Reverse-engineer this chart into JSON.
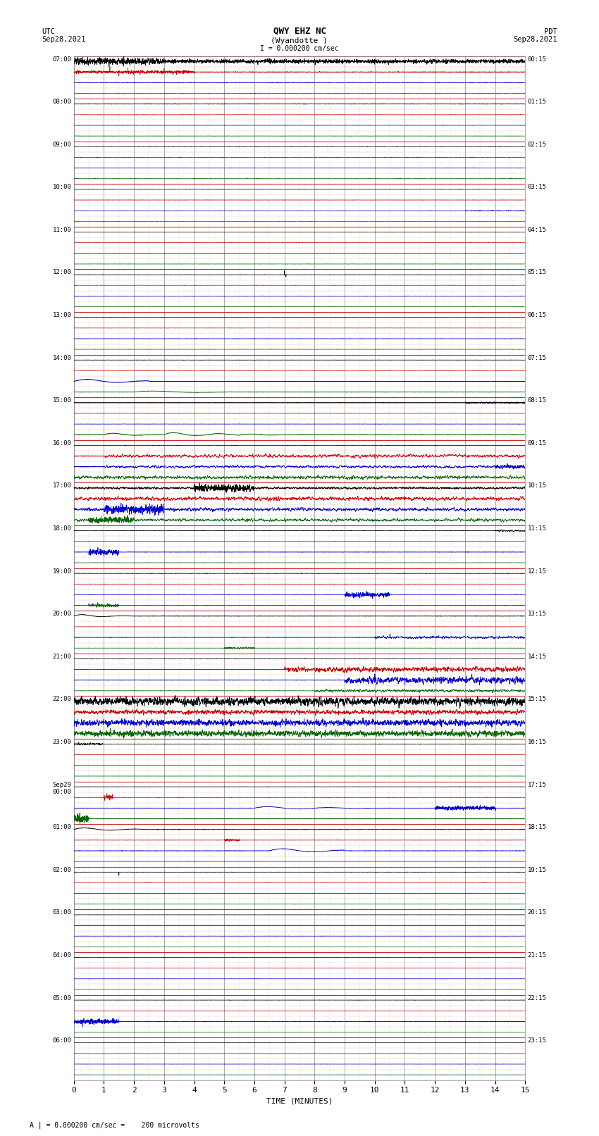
{
  "title_line1": "QWY EHZ NC",
  "title_line2": "(Wyandotte )",
  "title_scale": "I = 0.000200 cm/sec",
  "label_left_top": "UTC",
  "label_left_date": "Sep28,2021",
  "label_right_top": "PDT",
  "label_right_date": "Sep28,2021",
  "xlabel": "TIME (MINUTES)",
  "footer": "A | = 0.000200 cm/sec =    200 microvolts",
  "xlim": [
    0,
    15
  ],
  "xticks": [
    0,
    1,
    2,
    3,
    4,
    5,
    6,
    7,
    8,
    9,
    10,
    11,
    12,
    13,
    14,
    15
  ],
  "bg_color": "#ffffff",
  "grid_color": "#cc0000",
  "vgrid_color": "#888888",
  "trace_black": "#000000",
  "trace_red": "#cc0000",
  "trace_blue": "#0000cc",
  "trace_green": "#006600",
  "num_hours": 24,
  "subrows": 4,
  "left_labels": [
    "07:00",
    "08:00",
    "09:00",
    "10:00",
    "11:00",
    "12:00",
    "13:00",
    "14:00",
    "15:00",
    "16:00",
    "17:00",
    "18:00",
    "19:00",
    "20:00",
    "21:00",
    "22:00",
    "23:00",
    "Sep29\n00:00",
    "01:00",
    "02:00",
    "03:00",
    "04:00",
    "05:00",
    "06:00"
  ],
  "right_labels": [
    "00:15",
    "01:15",
    "02:15",
    "03:15",
    "04:15",
    "05:15",
    "06:15",
    "07:15",
    "08:15",
    "09:15",
    "10:15",
    "11:15",
    "12:15",
    "13:15",
    "14:15",
    "15:15",
    "16:15",
    "17:15",
    "18:15",
    "19:15",
    "20:15",
    "21:15",
    "22:15",
    "23:15"
  ],
  "seed": 12345
}
